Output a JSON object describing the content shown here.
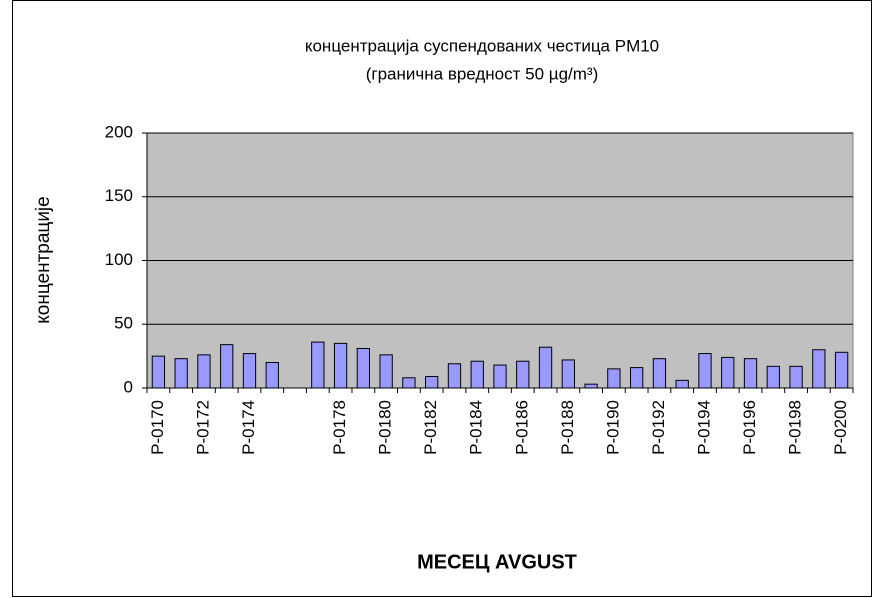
{
  "chart_data": {
    "type": "bar",
    "title": [
      "концентрација суспендованих честица PM10",
      "(гранична вредност 50 µg/m³)"
    ],
    "y_label": "концентрације",
    "x_label": "МЕСЕЦ AVGUST",
    "categories": [
      "P-0170",
      null,
      "P-0172",
      null,
      "P-0174",
      null,
      null,
      null,
      "P-0178",
      null,
      "P-0180",
      null,
      "P-0182",
      null,
      "P-0184",
      null,
      "P-0186",
      null,
      "P-0188",
      null,
      "P-0190",
      null,
      "P-0192",
      null,
      "P-0194",
      null,
      "P-0196",
      null,
      "P-0198",
      null,
      "P-0200"
    ],
    "values": [
      25,
      23,
      26,
      34,
      27,
      20,
      null,
      36,
      35,
      31,
      26,
      8,
      9,
      19,
      21,
      18,
      21,
      32,
      22,
      3,
      15,
      16,
      23,
      6,
      27,
      24,
      23,
      17,
      17,
      30,
      28
    ],
    "color": "#9999ff",
    "ylim": [
      0,
      200
    ],
    "yticks": [
      0,
      50,
      100,
      150,
      200
    ],
    "grid": true
  }
}
